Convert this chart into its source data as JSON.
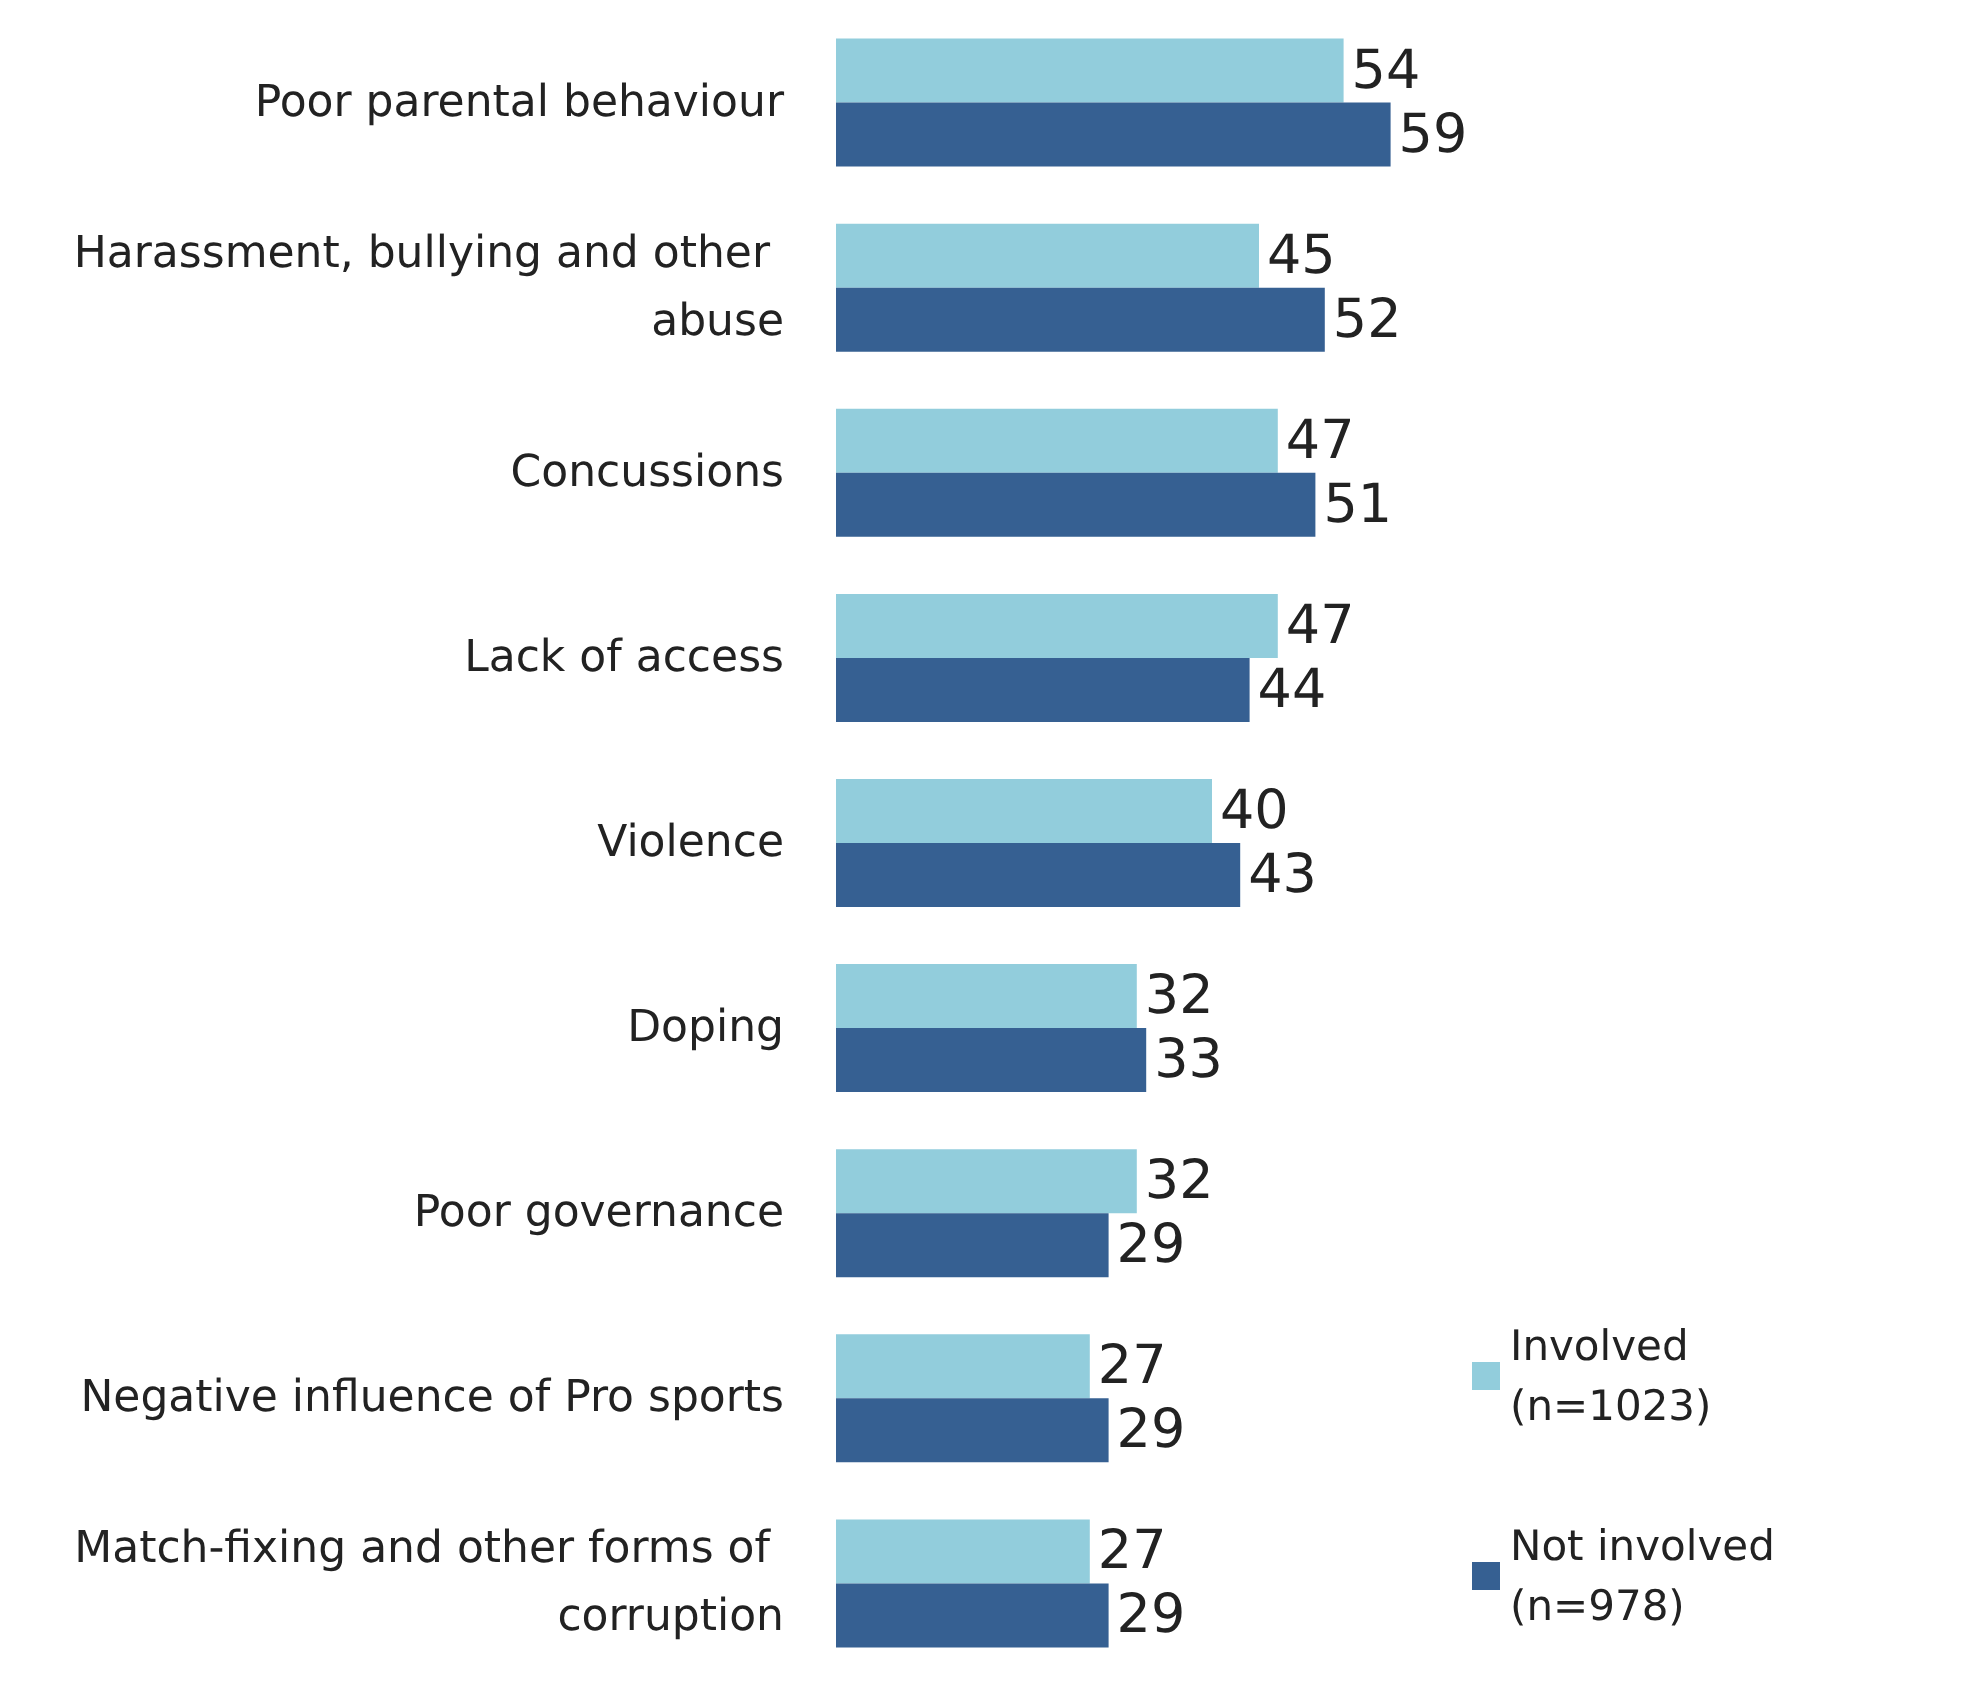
{
  "chart_data": {
    "type": "bar",
    "orientation": "horizontal",
    "categories": [
      "Poor parental behaviour",
      "Harassment, bullying and other abuse",
      "Concussions",
      "Lack of access",
      "Violence",
      "Doping",
      "Poor governance",
      "Negative influence of Pro sports",
      "Match-fixing and other forms of corruption"
    ],
    "series": [
      {
        "name": "Involved (n=1023)",
        "color": "#92cddc",
        "values": [
          54,
          45,
          47,
          47,
          40,
          32,
          32,
          27,
          27
        ]
      },
      {
        "name": "Not involved (n=978)",
        "color": "#366092",
        "values": [
          59,
          52,
          51,
          44,
          43,
          33,
          29,
          29,
          29
        ]
      }
    ],
    "data_labels": true,
    "legend": "bottom right"
  }
}
